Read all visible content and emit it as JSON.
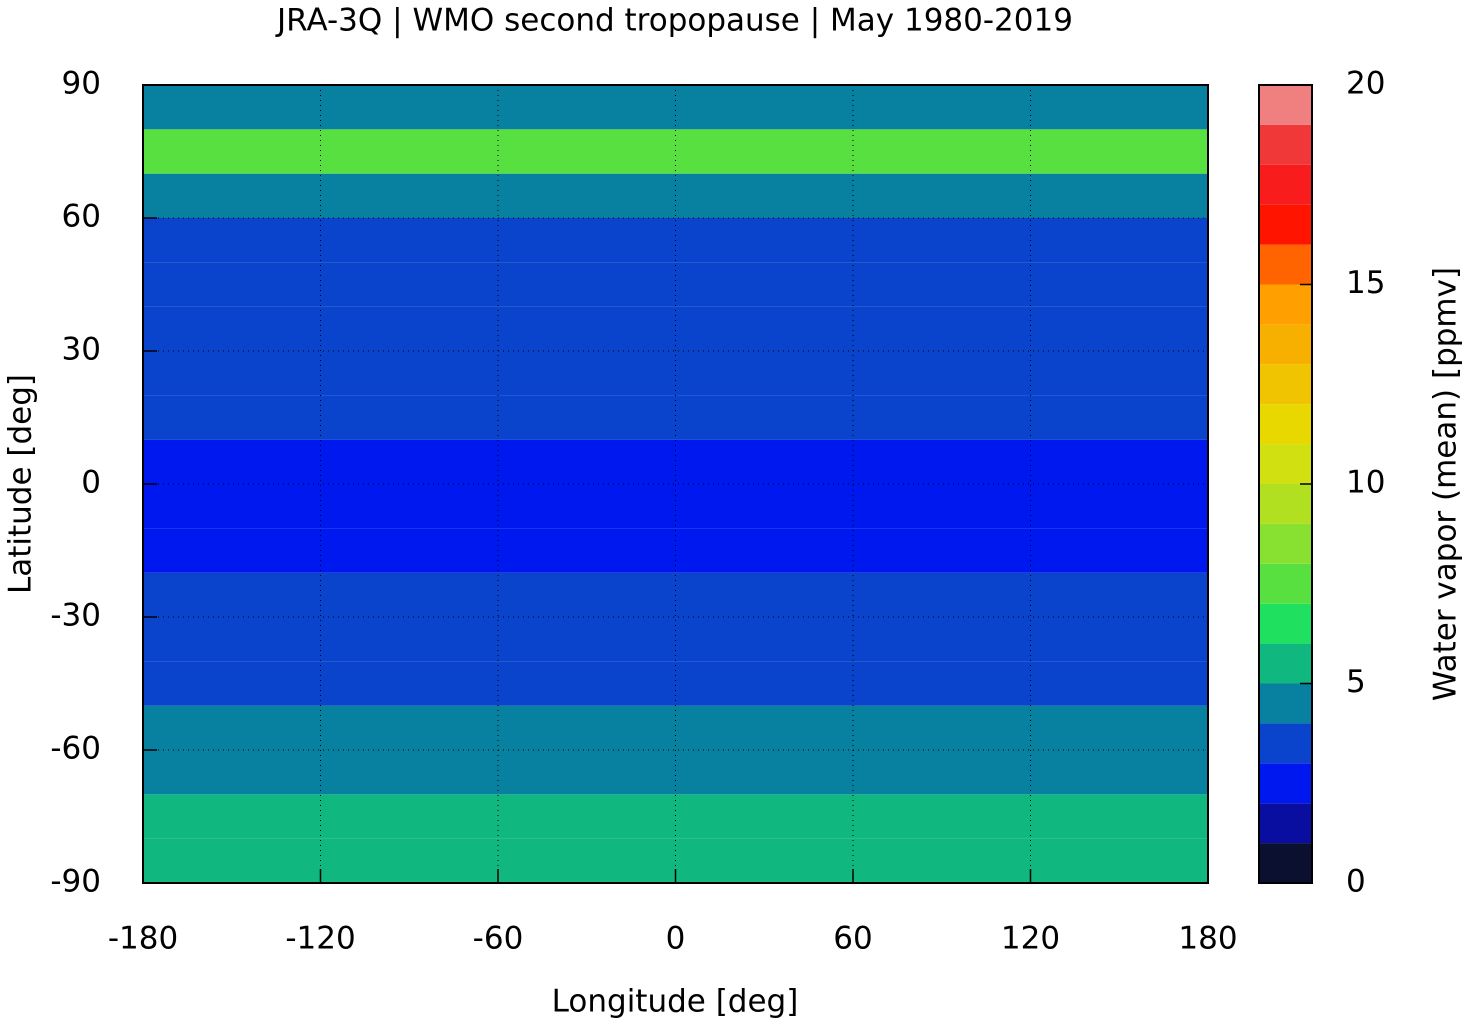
{
  "chart_data": {
    "type": "heatmap",
    "title": "JRA-3Q | WMO second tropopause | May 1980-2019",
    "x_label": "Longitude [deg]",
    "y_label": "Latitude [deg]",
    "colorbar_label": "Water vapor (mean) [ppmv]",
    "xlim": [
      -180,
      180
    ],
    "ylim": [
      -90,
      90
    ],
    "xticks": [
      -180,
      -120,
      -60,
      0,
      60,
      120,
      180
    ],
    "yticks": [
      -90,
      -60,
      -30,
      0,
      30,
      60,
      90
    ],
    "grid": true,
    "lat_bins": [
      -90,
      -80,
      -70,
      -60,
      -50,
      -40,
      -30,
      -20,
      -10,
      0,
      10,
      20,
      30,
      40,
      50,
      60,
      70,
      80,
      90
    ],
    "values": [
      5.5,
      5.3,
      4.8,
      4.4,
      3.6,
      3.5,
      3.4,
      2.8,
      2.5,
      2.5,
      3.1,
      3.5,
      3.5,
      3.6,
      3.9,
      4.6,
      7.5,
      4
    ],
    "clim": [
      0,
      20
    ],
    "cticks": [
      0,
      5,
      10,
      15,
      20
    ],
    "levels": [
      0,
      1,
      2,
      3,
      4,
      5,
      6,
      7,
      8,
      9,
      10,
      11,
      12,
      13,
      14,
      15,
      16,
      17,
      18,
      19,
      20
    ],
    "colors": [
      "#0c1030",
      "#0a0ea0",
      "#0018f0",
      "#0a44cc",
      "#0880a0",
      "#10b880",
      "#20e060",
      "#58e040",
      "#88e030",
      "#b0e020",
      "#d0e010",
      "#e8d800",
      "#f0c400",
      "#f8b000",
      "#ffa000",
      "#ff6400",
      "#ff1400",
      "#f81c1c",
      "#f03838",
      "#f08080",
      "#ffc8c8"
    ]
  }
}
